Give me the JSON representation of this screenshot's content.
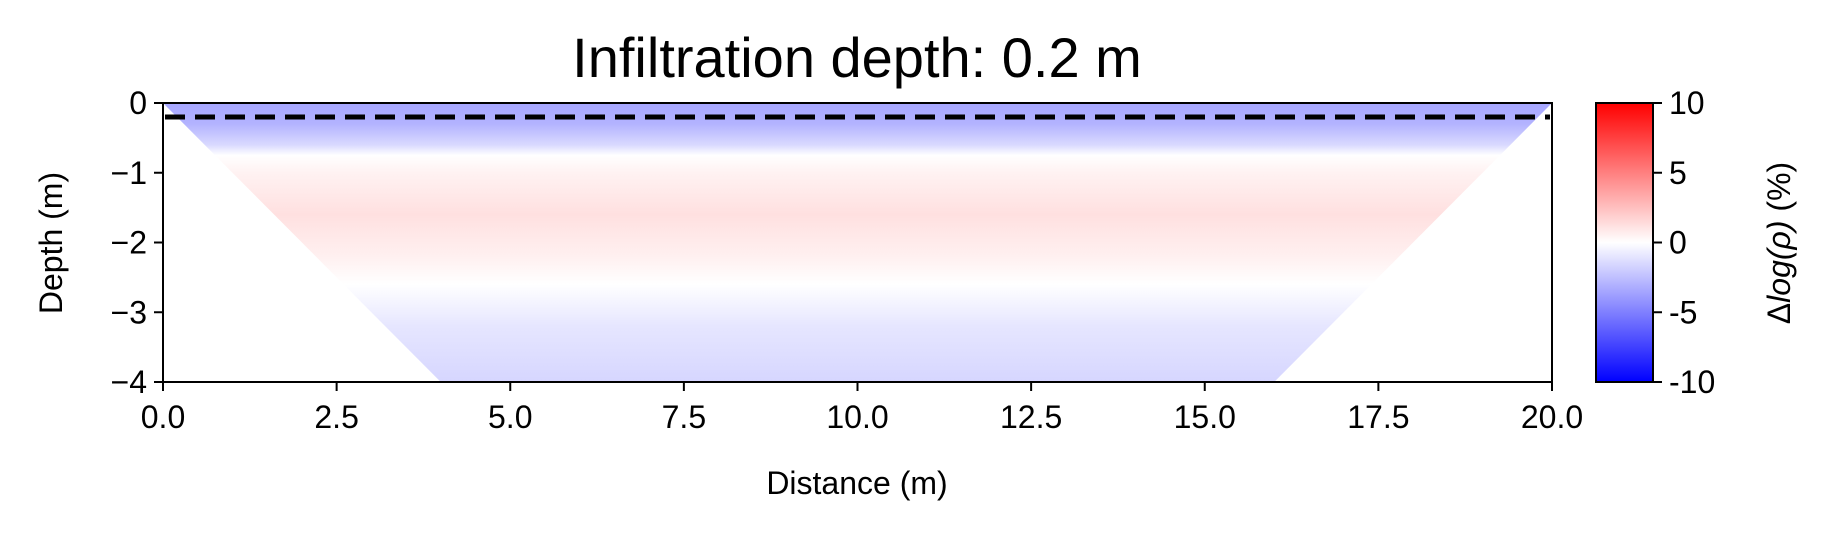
{
  "chart_data": {
    "type": "heatmap",
    "title": "Infiltration depth: 0.2 m",
    "xlabel": "Distance (m)",
    "ylabel": "Depth (m)",
    "xlim": [
      0,
      20
    ],
    "ylim": [
      -4,
      0
    ],
    "x_ticks": [
      "0.0",
      "2.5",
      "5.0",
      "7.5",
      "10.0",
      "12.5",
      "15.0",
      "17.5",
      "20.0"
    ],
    "y_ticks": [
      "0",
      "−1",
      "−2",
      "−3",
      "−4"
    ],
    "colorbar": {
      "label": "Δlog(ρ) (%)",
      "label_parts": {
        "delta": "Δ",
        "func": "log(ρ)",
        "unit": " (%)"
      },
      "range": [
        -10,
        10
      ],
      "ticks": [
        "10",
        "5",
        "0",
        "-5",
        "-10"
      ],
      "colormap": "bwr",
      "color_min": "#0000ff",
      "color_mid": "#ffffff",
      "color_max": "#ff0000"
    },
    "coverage_trapezoid": {
      "top_depth": 0,
      "bottom_depth": -4,
      "top_x": [
        0,
        20
      ],
      "bottom_x": [
        4,
        16
      ]
    },
    "depth_profile": [
      {
        "depth": 0.0,
        "value": -3.5
      },
      {
        "depth": -0.3,
        "value": -3.0
      },
      {
        "depth": -0.6,
        "value": -1.5
      },
      {
        "depth": -0.75,
        "value": 0.0
      },
      {
        "depth": -1.0,
        "value": 0.5
      },
      {
        "depth": -1.6,
        "value": 1.2
      },
      {
        "depth": -2.2,
        "value": 0.6
      },
      {
        "depth": -2.6,
        "value": 0.0
      },
      {
        "depth": -3.2,
        "value": -1.0
      },
      {
        "depth": -4.0,
        "value": -1.6
      }
    ],
    "infiltration_line": {
      "depth": -0.2,
      "style": "dashed",
      "color": "#000000"
    }
  }
}
